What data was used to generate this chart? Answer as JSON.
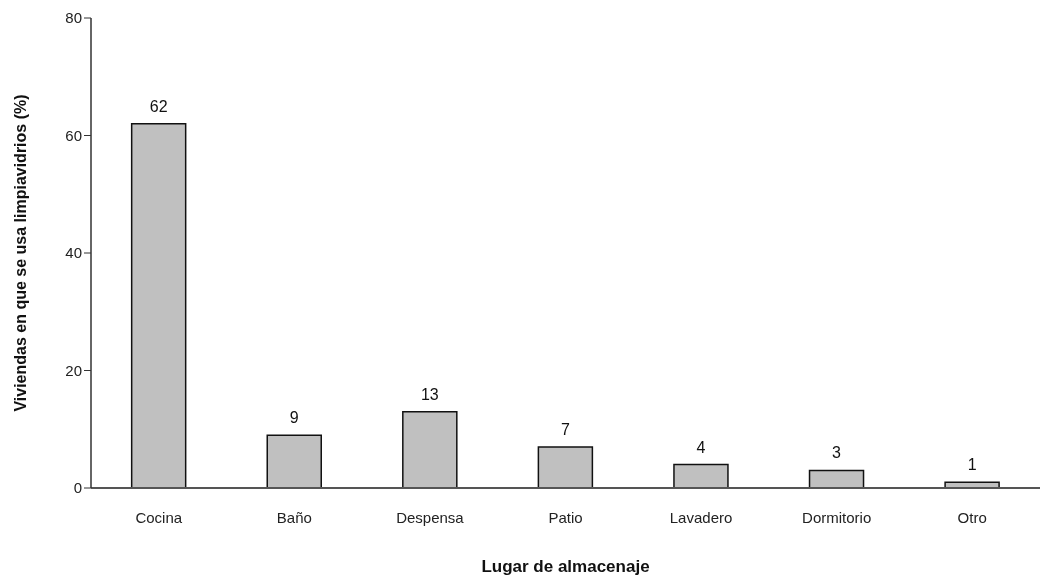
{
  "chart_data": {
    "type": "bar",
    "xlabel": "Lugar de almacenaje",
    "ylabel": "Viviendas en que se usa limpiavidrios (%)",
    "categories": [
      "Cocina",
      "Baño",
      "Despensa",
      "Patio",
      "Lavadero",
      "Dormitorio",
      "Otro"
    ],
    "values": [
      62,
      9,
      13,
      7,
      4,
      3,
      1
    ],
    "color": "#c0c0c0",
    "ylim": [
      0,
      80
    ],
    "yticks": [
      0,
      20,
      40,
      60,
      80
    ],
    "data_labels": true
  }
}
